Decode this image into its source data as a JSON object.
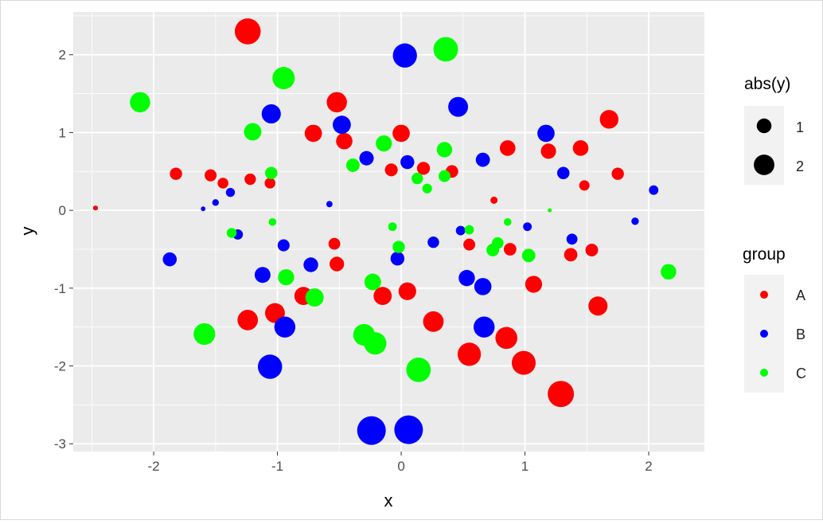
{
  "chart_data": {
    "type": "scatter",
    "xlabel": "x",
    "ylabel": "y",
    "xlim": [
      -2.65,
      2.45
    ],
    "ylim": [
      -3.1,
      2.55
    ],
    "x_ticks": [
      -2,
      -1,
      0,
      1,
      2
    ],
    "y_ticks": [
      -3,
      -2,
      -1,
      0,
      1,
      2
    ],
    "grid": true,
    "size_legend": {
      "title": "abs(y)",
      "entries": [
        1,
        2
      ]
    },
    "color_legend": {
      "title": "group",
      "entries": [
        "A",
        "B",
        "C"
      ],
      "placement": "right"
    },
    "colors": {
      "A": "#FF0000",
      "B": "#0000FF",
      "C": "#00FF00"
    },
    "series": [
      {
        "name": "A",
        "points": [
          [
            -1.24,
            2.3
          ],
          [
            -0.52,
            1.39
          ],
          [
            -0.71,
            0.99
          ],
          [
            -0.46,
            0.89
          ],
          [
            0.0,
            0.99
          ],
          [
            -1.82,
            0.47
          ],
          [
            -1.54,
            0.45
          ],
          [
            -1.44,
            0.35
          ],
          [
            -1.22,
            0.4
          ],
          [
            -1.06,
            0.35
          ],
          [
            -0.08,
            0.52
          ],
          [
            0.18,
            0.54
          ],
          [
            0.41,
            0.5
          ],
          [
            0.86,
            0.8
          ],
          [
            1.19,
            0.76
          ],
          [
            1.45,
            0.8
          ],
          [
            1.68,
            1.17
          ],
          [
            1.75,
            0.47
          ],
          [
            1.48,
            0.32
          ],
          [
            0.75,
            0.13
          ],
          [
            -2.47,
            0.03
          ],
          [
            -0.54,
            -0.43
          ],
          [
            -0.52,
            -0.69
          ],
          [
            0.55,
            -0.44
          ],
          [
            0.88,
            -0.5
          ],
          [
            1.37,
            -0.57
          ],
          [
            1.54,
            -0.51
          ],
          [
            1.07,
            -0.95
          ],
          [
            -0.79,
            -1.1
          ],
          [
            -1.02,
            -1.32
          ],
          [
            -1.24,
            -1.41
          ],
          [
            -0.15,
            -1.1
          ],
          [
            0.05,
            -1.04
          ],
          [
            0.26,
            -1.43
          ],
          [
            1.59,
            -1.23
          ],
          [
            0.55,
            -1.85
          ],
          [
            0.85,
            -1.64
          ],
          [
            0.99,
            -1.96
          ],
          [
            1.29,
            -2.36
          ]
        ]
      },
      {
        "name": "B",
        "points": [
          [
            0.03,
            1.99
          ],
          [
            0.46,
            1.33
          ],
          [
            -1.05,
            1.24
          ],
          [
            -0.48,
            1.1
          ],
          [
            1.17,
            0.99
          ],
          [
            -0.28,
            0.67
          ],
          [
            0.05,
            0.62
          ],
          [
            0.66,
            0.65
          ],
          [
            1.31,
            0.48
          ],
          [
            2.04,
            0.26
          ],
          [
            -1.38,
            0.23
          ],
          [
            -1.5,
            0.1
          ],
          [
            -1.6,
            0.02
          ],
          [
            -0.58,
            0.08
          ],
          [
            -1.32,
            -0.31
          ],
          [
            -0.95,
            -0.45
          ],
          [
            -1.87,
            -0.63
          ],
          [
            -1.12,
            -0.83
          ],
          [
            -0.73,
            -0.7
          ],
          [
            -0.03,
            -0.62
          ],
          [
            0.26,
            -0.41
          ],
          [
            0.48,
            -0.26
          ],
          [
            1.02,
            -0.21
          ],
          [
            1.38,
            -0.37
          ],
          [
            1.89,
            -0.14
          ],
          [
            0.53,
            -0.87
          ],
          [
            0.66,
            -0.98
          ],
          [
            -0.94,
            -1.5
          ],
          [
            0.67,
            -1.5
          ],
          [
            -1.06,
            -2.01
          ],
          [
            -0.24,
            -2.83
          ],
          [
            0.06,
            -2.82
          ]
        ]
      },
      {
        "name": "C",
        "points": [
          [
            0.36,
            2.07
          ],
          [
            -0.95,
            1.7
          ],
          [
            -2.11,
            1.39
          ],
          [
            -1.2,
            1.01
          ],
          [
            -0.14,
            0.86
          ],
          [
            -0.39,
            0.58
          ],
          [
            0.35,
            0.78
          ],
          [
            -1.05,
            0.48
          ],
          [
            0.13,
            0.41
          ],
          [
            0.21,
            0.28
          ],
          [
            0.35,
            0.44
          ],
          [
            1.2,
            0.0
          ],
          [
            -1.04,
            -0.15
          ],
          [
            -1.37,
            -0.29
          ],
          [
            -0.07,
            -0.21
          ],
          [
            -0.02,
            -0.47
          ],
          [
            0.55,
            -0.25
          ],
          [
            0.86,
            -0.15
          ],
          [
            0.78,
            -0.42
          ],
          [
            0.74,
            -0.51
          ],
          [
            1.03,
            -0.58
          ],
          [
            2.16,
            -0.79
          ],
          [
            -0.93,
            -0.86
          ],
          [
            -0.7,
            -1.12
          ],
          [
            -0.23,
            -0.92
          ],
          [
            -1.59,
            -1.59
          ],
          [
            -0.3,
            -1.6
          ],
          [
            -0.21,
            -1.71
          ],
          [
            0.14,
            -2.05
          ]
        ]
      }
    ]
  }
}
